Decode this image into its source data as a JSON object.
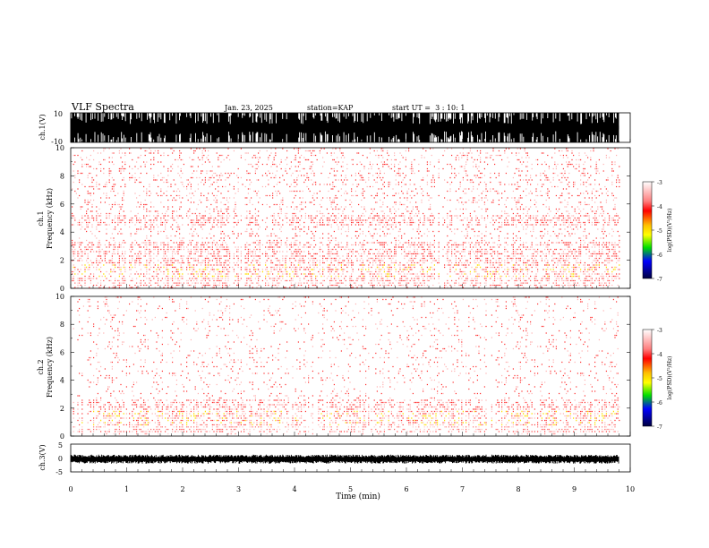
{
  "header": {
    "title": "VLF Spectra",
    "date": "Jan. 23, 2025",
    "station": "station=KAP",
    "start": "start UT =  3 : 10: 1"
  },
  "chart_data": [
    {
      "type": "line",
      "name": "ch1-waveform",
      "ylabel": "ch.1(V)",
      "ylim": [
        -10,
        10
      ],
      "yticks": [
        "10",
        "-10"
      ],
      "xlim": [
        0,
        10
      ],
      "note": "clipped dense waveform spanning full range"
    },
    {
      "type": "heatmap",
      "name": "ch1-spectrogram",
      "ylabel": "ch.1\nFrequency (kHz)",
      "ylim": [
        0,
        10
      ],
      "yticks": [
        "0",
        "2",
        "4",
        "6",
        "8",
        "10"
      ],
      "xlim": [
        0,
        10
      ],
      "colorbar": {
        "label": "log(PSD)(V²/Hz)",
        "range": [
          -7,
          -3
        ],
        "ticks": [
          "-3",
          "-4",
          "-5",
          "-6",
          "-7"
        ]
      },
      "bands_khz": [
        [
          0.2,
          3.4
        ],
        [
          4.4,
          5.2
        ]
      ],
      "strong_band_khz": [
        0.8,
        1.8
      ]
    },
    {
      "type": "heatmap",
      "name": "ch2-spectrogram",
      "ylabel": "ch.2\nFrequency (kHz)",
      "ylim": [
        0,
        10
      ],
      "yticks": [
        "0",
        "2",
        "4",
        "6",
        "8",
        "10"
      ],
      "xlim": [
        0,
        10
      ],
      "colorbar": {
        "label": "log(PSD)(V²/Hz)",
        "range": [
          -7,
          -3
        ],
        "ticks": [
          "-3",
          "-4",
          "-5",
          "-6",
          "-7"
        ]
      },
      "bands_khz": [
        [
          0.2,
          2.6
        ]
      ],
      "strong_band_khz": [
        0.8,
        1.8
      ]
    },
    {
      "type": "line",
      "name": "ch3-waveform",
      "ylabel": "ch.3(V)",
      "ylim": [
        -5,
        5
      ],
      "yticks": [
        "5",
        "0",
        "-5"
      ],
      "xlim": [
        0,
        10
      ],
      "xlabel": "Time (min)",
      "xticks": [
        "0",
        "1",
        "2",
        "3",
        "4",
        "5",
        "6",
        "7",
        "8",
        "9",
        "10"
      ],
      "note": "narrow noise band around 0 V"
    }
  ],
  "colors": {
    "waveform": "#000000",
    "spectrum_weak": "#ffb0b0",
    "spectrum_mid": "#ff3030",
    "spectrum_strong": "#ffe000",
    "colormap": [
      "#ffffff",
      "#ff0000",
      "#ffff00",
      "#00e000",
      "#0000ff",
      "#000040"
    ]
  }
}
